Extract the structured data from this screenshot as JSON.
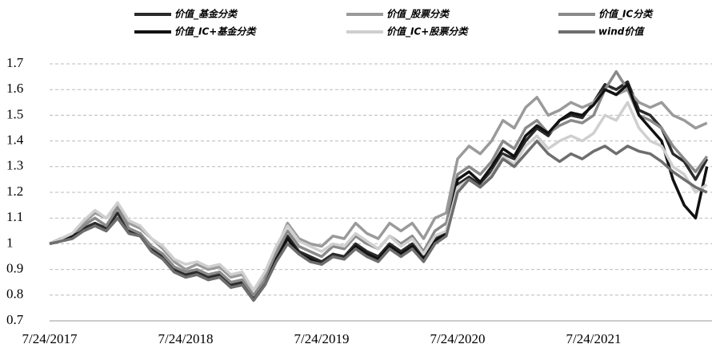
{
  "chart_data": {
    "type": "line",
    "categories": [
      "7/24/2017",
      null,
      null,
      null,
      null,
      null,
      null,
      null,
      null,
      null,
      null,
      null,
      "7/24/2018",
      null,
      null,
      null,
      null,
      null,
      null,
      null,
      null,
      null,
      null,
      null,
      "7/24/2019",
      null,
      null,
      null,
      null,
      null,
      null,
      null,
      null,
      null,
      null,
      null,
      "7/24/2020",
      null,
      null,
      null,
      null,
      null,
      null,
      null,
      null,
      null,
      null,
      null,
      "7/24/2021",
      null,
      null,
      null,
      null,
      null,
      null,
      null,
      null,
      null,
      null
    ],
    "ylim": [
      0.7,
      1.7
    ],
    "yticks": [
      0.7,
      0.8,
      0.9,
      1,
      1.1,
      1.2,
      1.3,
      1.4,
      1.5,
      1.6,
      1.7
    ],
    "grid": true,
    "series": [
      {
        "name": "价值_基金分类",
        "color": "#2a2a2a",
        "values": [
          1.0,
          1.02,
          1.03,
          1.06,
          1.08,
          1.06,
          1.12,
          1.05,
          1.04,
          0.98,
          0.95,
          0.9,
          0.88,
          0.89,
          0.87,
          0.88,
          0.84,
          0.85,
          0.79,
          0.85,
          0.95,
          1.03,
          0.97,
          0.95,
          0.93,
          0.96,
          0.95,
          1.0,
          0.97,
          0.95,
          1.0,
          0.97,
          1.0,
          0.95,
          1.02,
          1.05,
          1.23,
          1.26,
          1.23,
          1.28,
          1.35,
          1.33,
          1.4,
          1.45,
          1.42,
          1.48,
          1.5,
          1.49,
          1.55,
          1.62,
          1.6,
          1.63,
          1.52,
          1.5,
          1.45,
          1.35,
          1.32,
          1.25,
          1.33
        ]
      },
      {
        "name": "价值_股票分类",
        "color": "#9a9a9a",
        "values": [
          1.0,
          1.02,
          1.04,
          1.08,
          1.12,
          1.1,
          1.15,
          1.08,
          1.06,
          1.02,
          0.98,
          0.93,
          0.9,
          0.92,
          0.9,
          0.91,
          0.87,
          0.88,
          0.82,
          0.88,
          0.98,
          1.08,
          1.02,
          1.0,
          0.99,
          1.03,
          1.02,
          1.08,
          1.04,
          1.02,
          1.08,
          1.05,
          1.08,
          1.02,
          1.1,
          1.12,
          1.33,
          1.38,
          1.35,
          1.4,
          1.48,
          1.45,
          1.53,
          1.57,
          1.5,
          1.52,
          1.55,
          1.53,
          1.55,
          1.6,
          1.58,
          1.6,
          1.55,
          1.53,
          1.55,
          1.5,
          1.48,
          1.45,
          1.47
        ]
      },
      {
        "name": "价值_IC分类",
        "color": "#8a8a8a",
        "values": [
          1.0,
          1.01,
          1.03,
          1.07,
          1.1,
          1.07,
          1.14,
          1.06,
          1.04,
          0.99,
          0.96,
          0.91,
          0.89,
          0.9,
          0.88,
          0.89,
          0.85,
          0.86,
          0.8,
          0.86,
          0.96,
          1.05,
          0.99,
          0.97,
          0.95,
          0.99,
          0.98,
          1.03,
          1.0,
          0.98,
          1.03,
          1.0,
          1.03,
          0.97,
          1.05,
          1.08,
          1.27,
          1.3,
          1.27,
          1.32,
          1.4,
          1.37,
          1.45,
          1.48,
          1.43,
          1.46,
          1.48,
          1.47,
          1.5,
          1.6,
          1.67,
          1.6,
          1.5,
          1.48,
          1.45,
          1.38,
          1.33,
          1.28,
          1.34
        ]
      },
      {
        "name": "价值_IC+基金分类",
        "color": "#111111",
        "values": [
          1.0,
          1.02,
          1.03,
          1.05,
          1.07,
          1.05,
          1.1,
          1.04,
          1.03,
          0.97,
          0.94,
          0.89,
          0.87,
          0.88,
          0.86,
          0.87,
          0.83,
          0.84,
          0.78,
          0.84,
          0.94,
          1.02,
          0.96,
          0.94,
          0.92,
          0.95,
          0.94,
          0.99,
          0.96,
          0.94,
          0.99,
          0.96,
          0.99,
          0.94,
          1.01,
          1.04,
          1.25,
          1.28,
          1.24,
          1.3,
          1.37,
          1.34,
          1.42,
          1.46,
          1.43,
          1.48,
          1.51,
          1.5,
          1.54,
          1.6,
          1.58,
          1.62,
          1.5,
          1.45,
          1.4,
          1.25,
          1.15,
          1.1,
          1.3
        ]
      },
      {
        "name": "价值_IC+股票分类",
        "color": "#cfcfcf",
        "values": [
          1.0,
          1.02,
          1.04,
          1.09,
          1.13,
          1.1,
          1.16,
          1.09,
          1.07,
          1.02,
          0.99,
          0.94,
          0.92,
          0.93,
          0.91,
          0.92,
          0.88,
          0.89,
          0.82,
          0.89,
          0.99,
          1.07,
          1.01,
          0.99,
          0.97,
          1.0,
          0.99,
          1.04,
          1.01,
          0.98,
          1.03,
          0.99,
          1.02,
          0.96,
          1.03,
          1.05,
          1.22,
          1.25,
          1.22,
          1.27,
          1.34,
          1.31,
          1.38,
          1.42,
          1.37,
          1.4,
          1.42,
          1.4,
          1.43,
          1.5,
          1.48,
          1.55,
          1.45,
          1.4,
          1.38,
          1.3,
          1.27,
          1.2,
          1.23
        ]
      },
      {
        "name": "wind价值",
        "color": "#6e6e6e",
        "values": [
          1.0,
          1.01,
          1.02,
          1.05,
          1.07,
          1.05,
          1.1,
          1.04,
          1.03,
          0.97,
          0.94,
          0.89,
          0.87,
          0.88,
          0.86,
          0.87,
          0.83,
          0.84,
          0.78,
          0.84,
          0.93,
          1.0,
          0.96,
          0.93,
          0.92,
          0.95,
          0.94,
          0.98,
          0.95,
          0.93,
          0.98,
          0.95,
          0.98,
          0.93,
          1.0,
          1.03,
          1.2,
          1.25,
          1.22,
          1.26,
          1.33,
          1.3,
          1.35,
          1.4,
          1.35,
          1.32,
          1.35,
          1.33,
          1.36,
          1.38,
          1.35,
          1.38,
          1.36,
          1.35,
          1.32,
          1.28,
          1.25,
          1.22,
          1.2
        ]
      }
    ]
  }
}
